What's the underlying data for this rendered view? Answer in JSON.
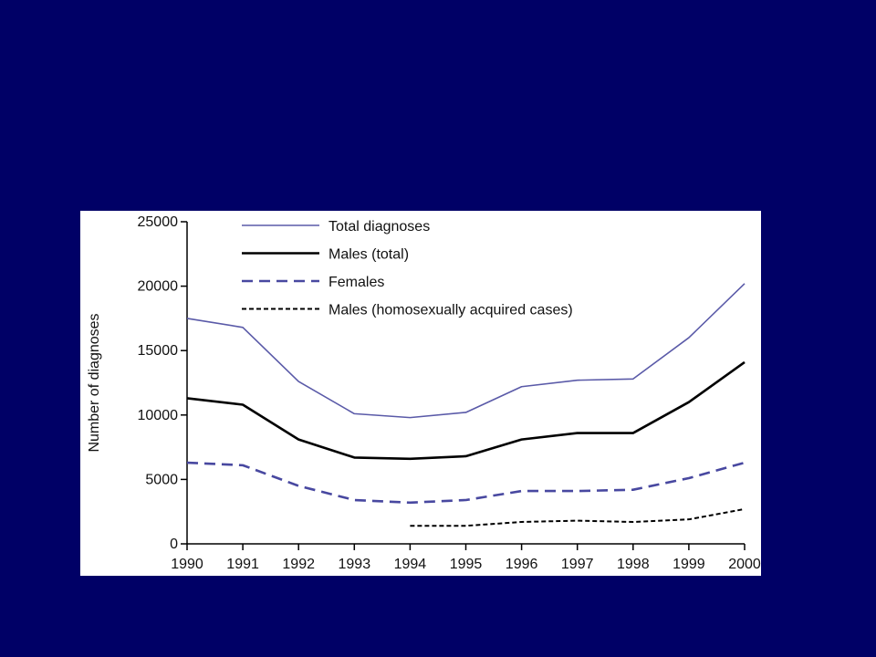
{
  "slide": {
    "background_color": "#000066",
    "panel_color": "#ffffff"
  },
  "chart_data": {
    "type": "line",
    "title": "",
    "xlabel": "",
    "ylabel": "Number of diagnoses",
    "x": [
      1990,
      1991,
      1992,
      1993,
      1994,
      1995,
      1996,
      1997,
      1998,
      1999,
      2000
    ],
    "x_tick_labels": [
      "1990",
      "1991",
      "1992",
      "1993",
      "1994",
      "1995",
      "1996",
      "1997",
      "1998",
      "1999",
      "2000"
    ],
    "ylim": [
      0,
      25000
    ],
    "y_ticks": [
      0,
      5000,
      10000,
      15000,
      20000,
      25000
    ],
    "y_tick_labels": [
      "0",
      "5000",
      "10000",
      "15000",
      "20000",
      "25000"
    ],
    "grid": false,
    "legend_position": "top",
    "series": [
      {
        "name": "Total diagnoses",
        "color": "#5a5aa8",
        "style": "solid",
        "weight": "thin",
        "values": [
          17500,
          16800,
          12600,
          10100,
          9800,
          10200,
          12200,
          12700,
          12800,
          16000,
          20200
        ]
      },
      {
        "name": "Males (total)",
        "color": "#000000",
        "style": "solid",
        "weight": "thick",
        "values": [
          11300,
          10800,
          8100,
          6700,
          6600,
          6800,
          8100,
          8600,
          8600,
          11000,
          14100
        ]
      },
      {
        "name": "Females",
        "color": "#4848a0",
        "style": "dashed",
        "weight": "thick",
        "values": [
          6300,
          6100,
          4500,
          3400,
          3200,
          3400,
          4100,
          4100,
          4200,
          5100,
          6300
        ]
      },
      {
        "name": "Males (homosexually acquired cases)",
        "color": "#000000",
        "style": "dotted",
        "weight": "medium",
        "values": [
          null,
          null,
          null,
          null,
          1400,
          1400,
          1700,
          1800,
          1700,
          1900,
          2700
        ]
      }
    ]
  }
}
